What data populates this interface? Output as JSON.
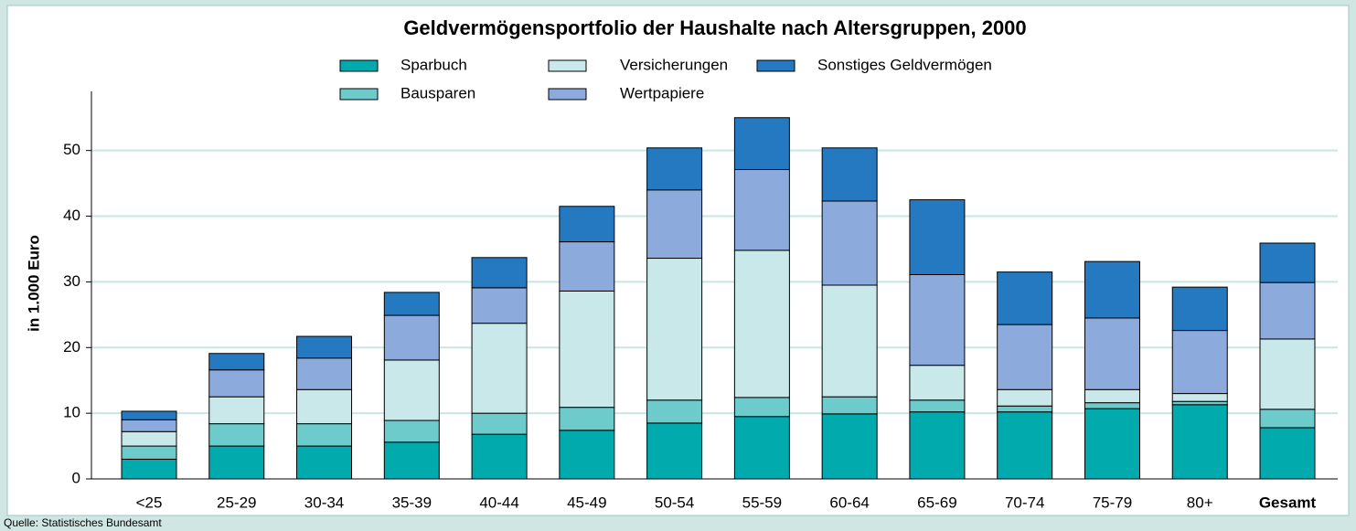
{
  "chart_data": {
    "type": "stacked_bar",
    "title": "Geldvermögensportfolio der Haushalte nach Altersgruppen, 2000",
    "y_label": "in 1.000 Euro",
    "source": "Quelle: Statistisches Bundesamt",
    "categories": [
      "<25",
      "25-29",
      "30-34",
      "35-39",
      "40-44",
      "45-49",
      "50-54",
      "55-59",
      "60-64",
      "65-69",
      "70-74",
      "75-79",
      "80+",
      "Gesamt"
    ],
    "series": [
      {
        "name": "Sparbuch",
        "color": "#00aaad",
        "values": [
          3.0,
          5.0,
          5.0,
          5.6,
          6.8,
          7.4,
          8.5,
          9.5,
          9.9,
          10.2,
          10.2,
          10.7,
          11.3,
          7.8
        ]
      },
      {
        "name": "Bausparen",
        "color": "#6ecbcb",
        "values": [
          2.0,
          3.4,
          3.4,
          3.3,
          3.2,
          3.5,
          3.5,
          2.9,
          2.6,
          1.8,
          0.9,
          0.9,
          0.5,
          2.8
        ]
      },
      {
        "name": "Versicherungen",
        "color": "#c8e8ea",
        "values": [
          2.2,
          4.1,
          5.2,
          9.2,
          13.7,
          17.7,
          21.6,
          22.4,
          17.0,
          5.3,
          2.5,
          2.0,
          1.2,
          10.7
        ]
      },
      {
        "name": "Wertpapiere",
        "color": "#8daadc",
        "values": [
          1.8,
          4.1,
          4.8,
          6.8,
          5.4,
          7.5,
          10.4,
          12.3,
          12.8,
          13.8,
          9.9,
          10.9,
          9.6,
          8.6
        ]
      },
      {
        "name": "Sonstiges Geldvermögen",
        "color": "#2479c1",
        "values": [
          1.3,
          2.5,
          3.3,
          3.5,
          4.6,
          5.4,
          6.4,
          7.9,
          8.1,
          11.4,
          8.0,
          8.6,
          6.6,
          6.0
        ]
      }
    ],
    "ylim": [
      0,
      59
    ],
    "yticks": [
      0,
      10,
      20,
      30,
      40,
      50
    ],
    "grid": true
  }
}
